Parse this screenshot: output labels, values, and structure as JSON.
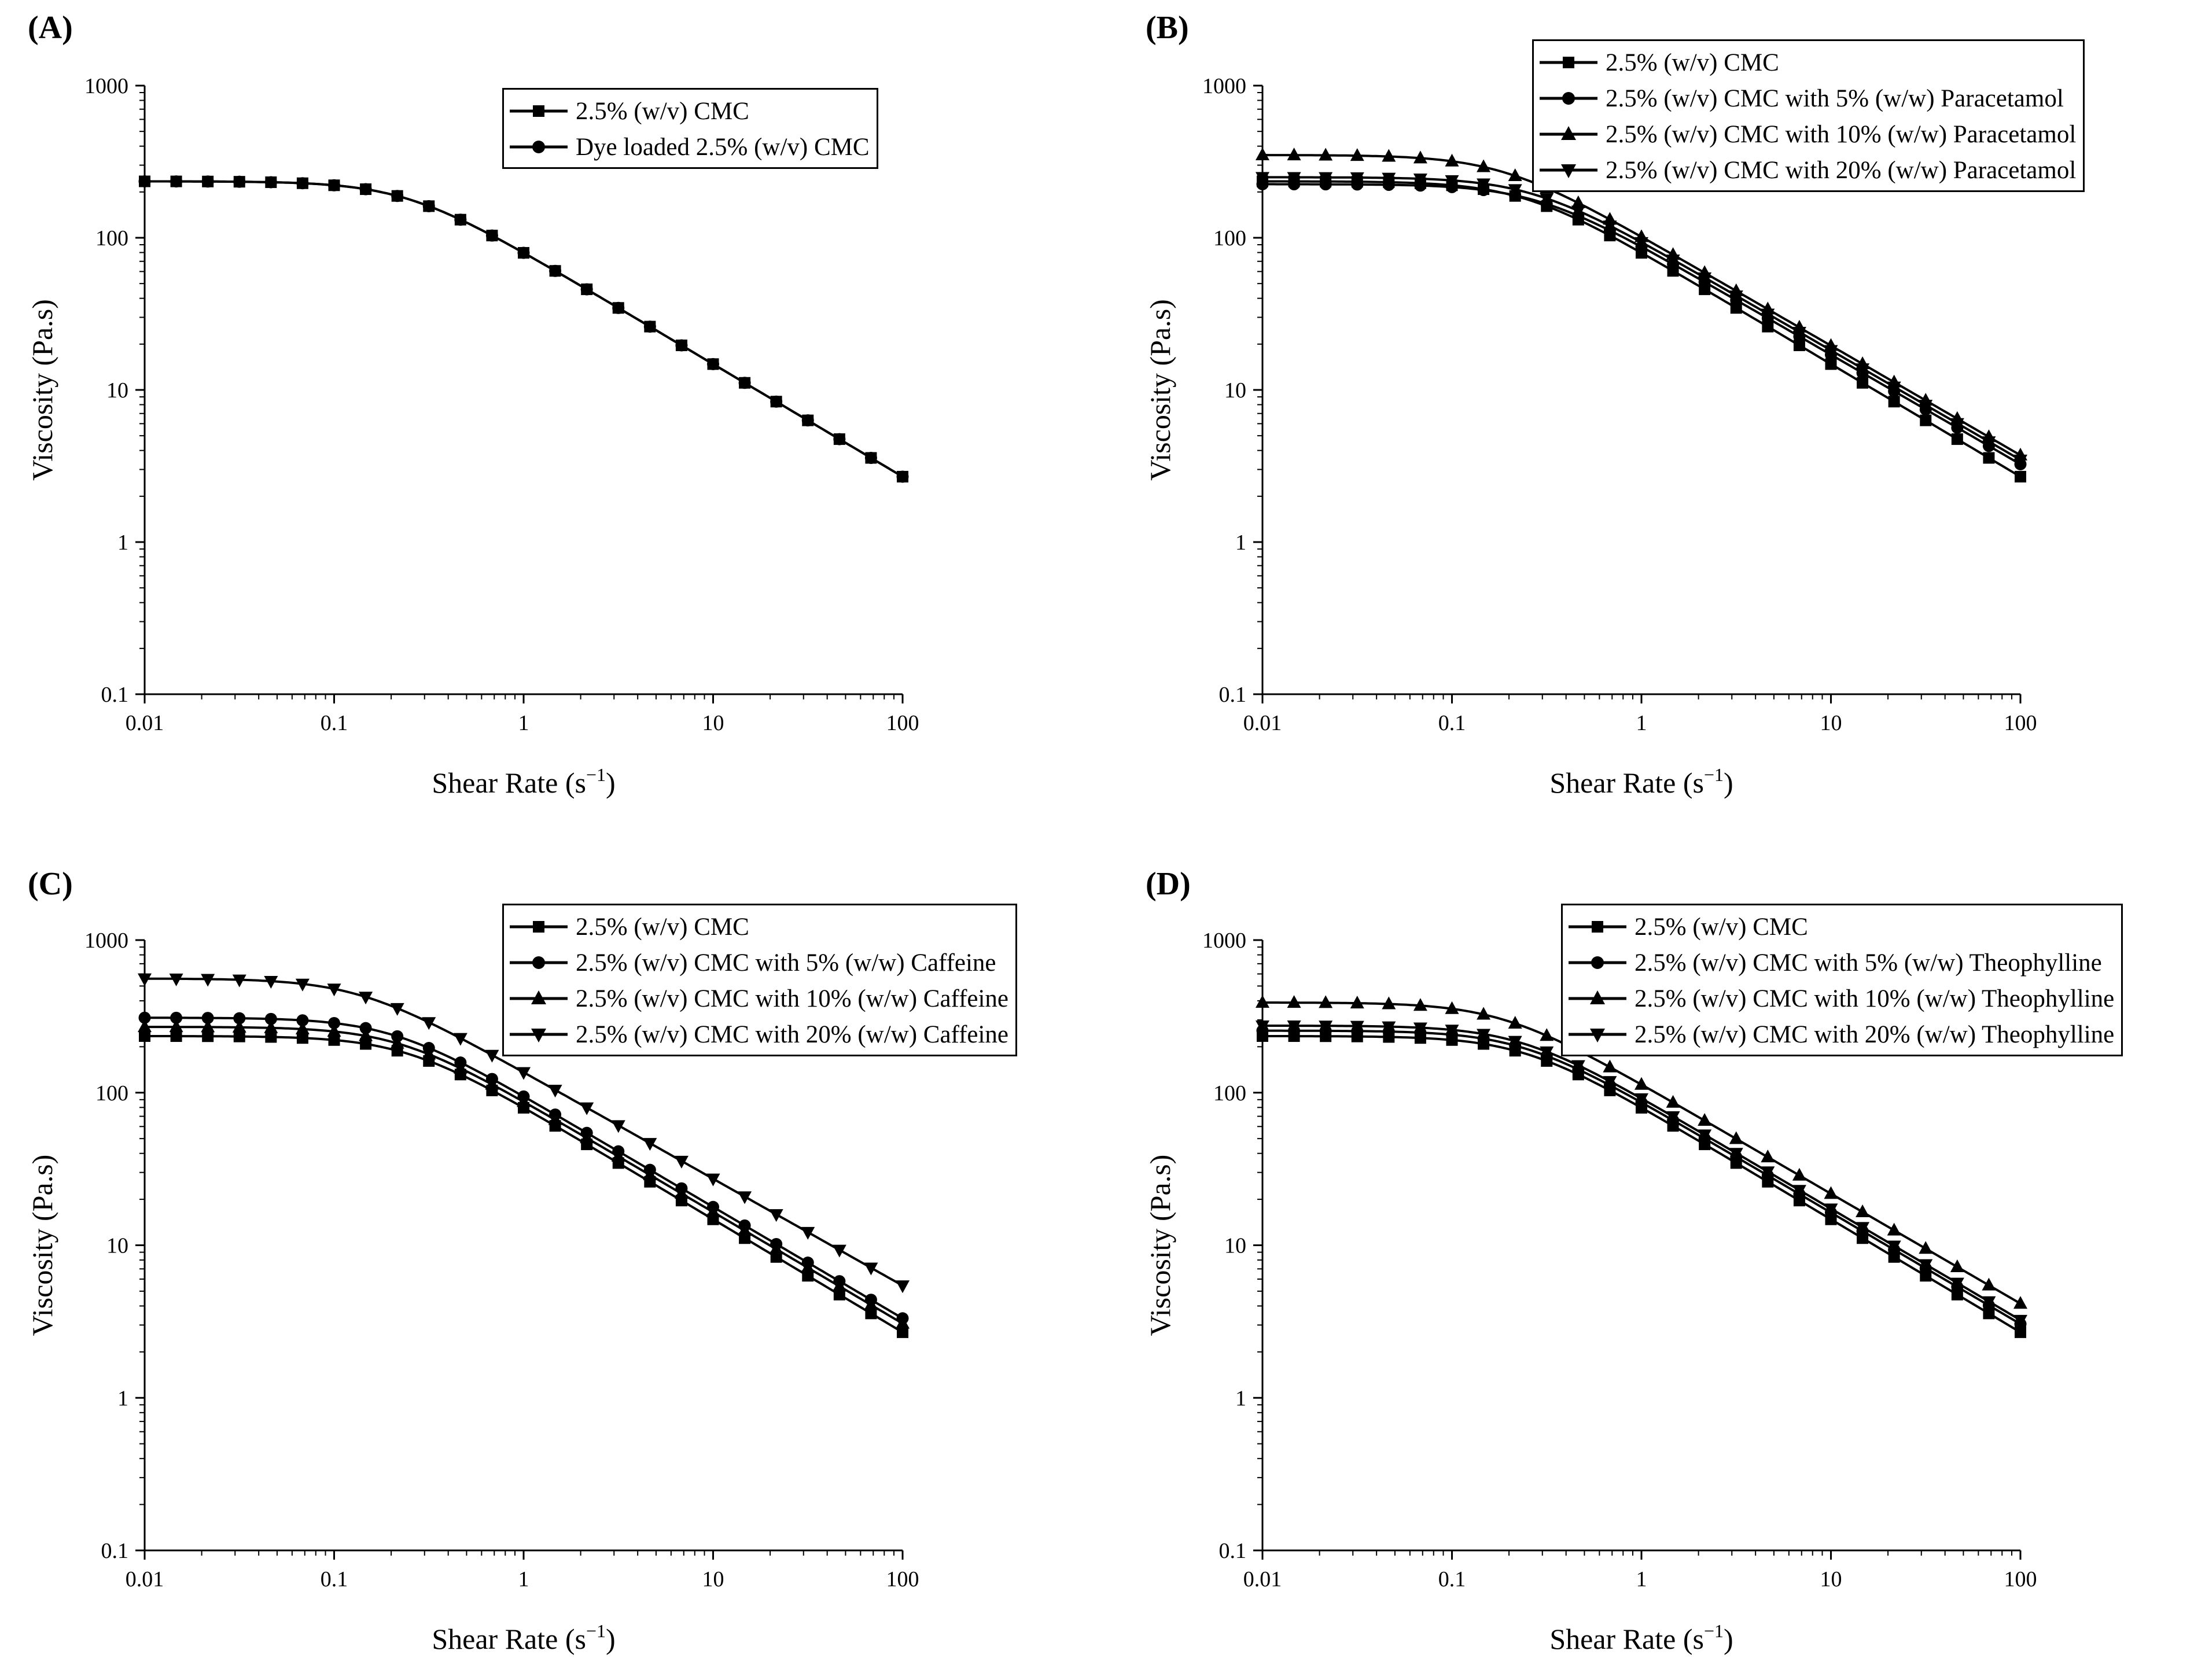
{
  "figure": {
    "panels": [
      {
        "label": "(A)",
        "legend_labels": [
          "2.5% (w/v) CMC",
          "Dye loaded 2.5% (w/v) CMC"
        ]
      },
      {
        "label": "(B)",
        "legend_labels": [
          "2.5% (w/v) CMC",
          "2.5% (w/v) CMC with 5% (w/w) Paracetamol",
          "2.5% (w/v) CMC with 10% (w/w) Paracetamol",
          "2.5% (w/v) CMC with 20% (w/w) Paracetamol"
        ]
      },
      {
        "label": "(C)",
        "legend_labels": [
          "2.5% (w/v) CMC",
          "2.5% (w/v) CMC with 5% (w/w) Caffeine",
          "2.5% (w/v) CMC with 10% (w/w) Caffeine",
          "2.5% (w/v) CMC with 20% (w/w) Caffeine"
        ]
      },
      {
        "label": "(D)",
        "legend_labels": [
          "2.5% (w/v) CMC",
          "2.5% (w/v) CMC with 5% (w/w) Theophylline",
          "2.5% (w/v) CMC with 10% (w/w) Theophylline",
          "2.5% (w/v) CMC with 20% (w/w) Theophylline"
        ]
      }
    ]
  },
  "chart_data": [
    {
      "type": "line",
      "panel": "(A)",
      "xlabel": "Shear Rate (s",
      "xlabel_sup": "−1",
      "xlabel_end": ")",
      "ylabel": "Viscosity (Pa.s)",
      "xscale": "log",
      "yscale": "log",
      "xlim": [
        0.01,
        100
      ],
      "ylim": [
        0.1,
        1000
      ],
      "xticks": [
        "0.01",
        "0.1",
        "1",
        "10",
        "100"
      ],
      "yticks": [
        "0.1",
        "1",
        "10",
        "100",
        "1000"
      ],
      "legend_position": "top-right",
      "series": [
        {
          "name": "2.5% (w/v) CMC",
          "marker": "square",
          "eta0": 235,
          "lambda": 4.2,
          "n": 0.26
        },
        {
          "name": "Dye loaded 2.5% (w/v) CMC",
          "marker": "circle",
          "eta0": 235,
          "lambda": 4.2,
          "n": 0.26
        }
      ]
    },
    {
      "type": "line",
      "panel": "(B)",
      "xlabel": "Shear Rate (s",
      "xlabel_sup": "−1",
      "xlabel_end": ")",
      "ylabel": "Viscosity (Pa.s)",
      "xscale": "log",
      "yscale": "log",
      "xlim": [
        0.01,
        100
      ],
      "ylim": [
        0.1,
        1000
      ],
      "xticks": [
        "0.01",
        "0.1",
        "1",
        "10",
        "100"
      ],
      "yticks": [
        "0.1",
        "1",
        "10",
        "100",
        "1000"
      ],
      "legend_position": "top-right",
      "series": [
        {
          "name": "2.5% (w/v) CMC",
          "marker": "square",
          "eta0": 235,
          "lambda": 4.2,
          "n": 0.26
        },
        {
          "name": "2.5% (w/v) CMC with 5% (w/w) Paracetamol",
          "marker": "circle",
          "eta0": 225,
          "lambda": 3.6,
          "n": 0.28
        },
        {
          "name": "2.5% (w/v) CMC with 10% (w/w) Paracetamol",
          "marker": "triangle-up",
          "eta0": 350,
          "lambda": 5.5,
          "n": 0.28
        },
        {
          "name": "2.5% (w/v) CMC with 20% (w/w) Paracetamol",
          "marker": "triangle-down",
          "eta0": 250,
          "lambda": 3.8,
          "n": 0.28
        }
      ]
    },
    {
      "type": "line",
      "panel": "(C)",
      "xlabel": "Shear Rate (s",
      "xlabel_sup": "−1",
      "xlabel_end": ")",
      "ylabel": "Viscosity (Pa.s)",
      "xscale": "log",
      "yscale": "log",
      "xlim": [
        0.01,
        100
      ],
      "ylim": [
        0.1,
        1000
      ],
      "xticks": [
        "0.01",
        "0.1",
        "1",
        "10",
        "100"
      ],
      "yticks": [
        "0.1",
        "1",
        "10",
        "100",
        "1000"
      ],
      "legend_position": "top-right",
      "series": [
        {
          "name": "2.5% (w/v) CMC",
          "marker": "square",
          "eta0": 235,
          "lambda": 4.2,
          "n": 0.26
        },
        {
          "name": "2.5% (w/v) CMC with 5% (w/w) Caffeine",
          "marker": "circle",
          "eta0": 310,
          "lambda": 5.0,
          "n": 0.27
        },
        {
          "name": "2.5% (w/v) CMC with 10% (w/w) Caffeine",
          "marker": "triangle-up",
          "eta0": 270,
          "lambda": 4.6,
          "n": 0.27
        },
        {
          "name": "2.5% (w/v) CMC with 20% (w/w) Caffeine",
          "marker": "triangle-down",
          "eta0": 560,
          "lambda": 7.5,
          "n": 0.3
        }
      ]
    },
    {
      "type": "line",
      "panel": "(D)",
      "xlabel": "Shear Rate (s",
      "xlabel_sup": "−1",
      "xlabel_end": ")",
      "ylabel": "Viscosity (Pa.s)",
      "xscale": "log",
      "yscale": "log",
      "xlim": [
        0.01,
        100
      ],
      "ylim": [
        0.1,
        1000
      ],
      "xticks": [
        "0.01",
        "0.1",
        "1",
        "10",
        "100"
      ],
      "yticks": [
        "0.1",
        "1",
        "10",
        "100",
        "1000"
      ],
      "legend_position": "top-right",
      "series": [
        {
          "name": "2.5% (w/v) CMC",
          "marker": "square",
          "eta0": 235,
          "lambda": 4.2,
          "n": 0.26
        },
        {
          "name": "2.5% (w/v) CMC with 5% (w/w) Theophylline",
          "marker": "circle",
          "eta0": 255,
          "lambda": 4.3,
          "n": 0.27
        },
        {
          "name": "2.5% (w/v) CMC with 10% (w/w) Theophylline",
          "marker": "triangle-up",
          "eta0": 390,
          "lambda": 5.5,
          "n": 0.28
        },
        {
          "name": "2.5% (w/v) CMC with 20% (w/w) Theophylline",
          "marker": "triangle-down",
          "eta0": 275,
          "lambda": 4.4,
          "n": 0.27
        }
      ]
    }
  ]
}
